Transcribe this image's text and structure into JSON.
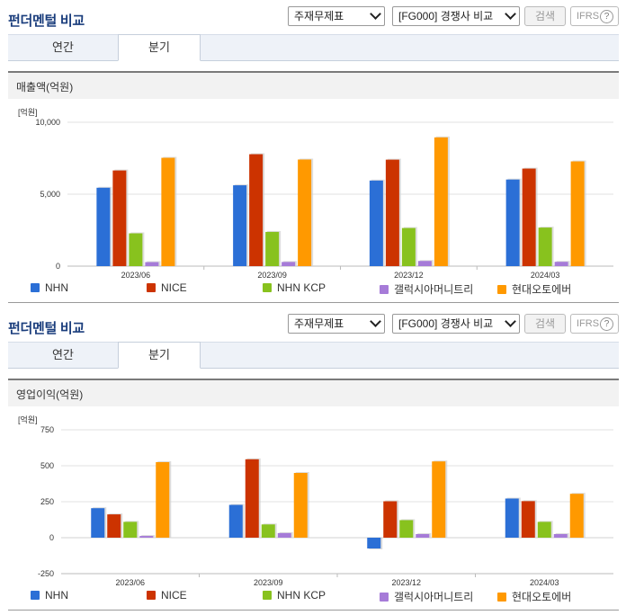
{
  "panels": [
    {
      "title": "펀더멘털 비교",
      "select_statement": "주재무제표",
      "select_compare": "[FG000] 경쟁사 비교",
      "search_label": "검색",
      "ifrs_label": "IFRS",
      "ifrs_help": "?",
      "tabs": [
        "연간",
        "분기"
      ],
      "active_tab": "분기",
      "section_title": "매출액(억원)",
      "unit": "[억원]"
    },
    {
      "title": "펀더멘털 비교",
      "select_statement": "주재무제표",
      "select_compare": "[FG000] 경쟁사 비교",
      "search_label": "검색",
      "ifrs_label": "IFRS",
      "ifrs_help": "?",
      "tabs": [
        "연간",
        "분기"
      ],
      "active_tab": "분기",
      "section_title": "영업이익(억원)",
      "unit": "[억원]"
    }
  ],
  "colors": {
    "NHN": "#2b6fd6",
    "NICE": "#cc3300",
    "NHN KCP": "#88c21e",
    "갤럭시아머니트리": "#a67bd8",
    "현대오토에버": "#ff9900"
  },
  "chart_data": [
    {
      "type": "bar",
      "title": "매출액(억원)",
      "ylabel": "[억원]",
      "categories": [
        "2023/06",
        "2023/09",
        "2023/12",
        "2024/03"
      ],
      "ylim": [
        0,
        10000
      ],
      "yticks": [
        0,
        5000,
        10000
      ],
      "ytick_labels": [
        "0",
        "5,000",
        "10,000"
      ],
      "grid": true,
      "legend": "bottom",
      "series": [
        {
          "name": "NHN",
          "values": [
            5450,
            5620,
            5950,
            6020
          ]
        },
        {
          "name": "NICE",
          "values": [
            6650,
            7780,
            7400,
            6780
          ]
        },
        {
          "name": "NHN KCP",
          "values": [
            2280,
            2380,
            2650,
            2680
          ]
        },
        {
          "name": "갤럭시아머니트리",
          "values": [
            280,
            290,
            360,
            300
          ]
        },
        {
          "name": "현대오토에버",
          "values": [
            7530,
            7410,
            8950,
            7280
          ]
        }
      ]
    },
    {
      "type": "bar",
      "title": "영업이익(억원)",
      "ylabel": "[억원]",
      "categories": [
        "2023/06",
        "2023/09",
        "2023/12",
        "2024/03"
      ],
      "ylim": [
        -250,
        750
      ],
      "yticks": [
        -250,
        0,
        250,
        500,
        750
      ],
      "ytick_labels": [
        "-250",
        "0",
        "250",
        "500",
        "750"
      ],
      "grid": true,
      "legend": "bottom",
      "series": [
        {
          "name": "NHN",
          "values": [
            205,
            228,
            -75,
            272
          ]
        },
        {
          "name": "NICE",
          "values": [
            162,
            545,
            253,
            254
          ]
        },
        {
          "name": "NHN KCP",
          "values": [
            110,
            92,
            122,
            110
          ]
        },
        {
          "name": "갤럭시아머니트리",
          "values": [
            12,
            32,
            25,
            25
          ]
        },
        {
          "name": "현대오토에버",
          "values": [
            525,
            450,
            530,
            305
          ]
        }
      ]
    }
  ]
}
